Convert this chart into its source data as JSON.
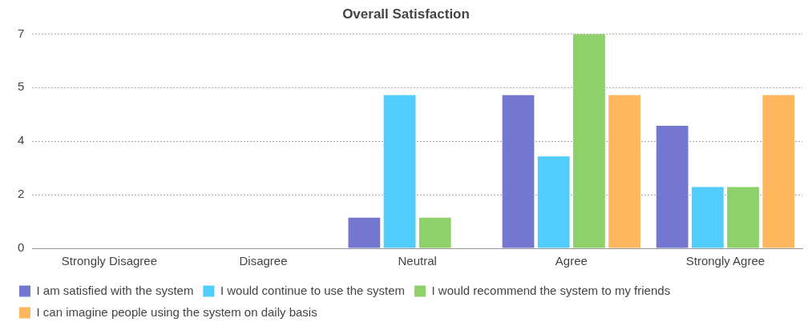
{
  "chart_data": {
    "type": "bar",
    "title": "Overall Satisfaction",
    "categories": [
      "Strongly Disagree",
      "Disagree",
      "Neutral",
      "Agree",
      "Strongly Agree"
    ],
    "series": [
      {
        "name": "I am satisfied with the system",
        "color": "#7377d0",
        "values": [
          0,
          0,
          1,
          5,
          4
        ]
      },
      {
        "name": "I would continue to use the system",
        "color": "#50cdfb",
        "values": [
          0,
          0,
          5,
          3,
          2
        ]
      },
      {
        "name": "I would recommend the system to my friends",
        "color": "#8ed06a",
        "values": [
          0,
          0,
          1,
          7,
          2
        ]
      },
      {
        "name": "I can imagine people using the system on daily basis",
        "color": "#ffb75d",
        "values": [
          0,
          0,
          0,
          5,
          5
        ]
      }
    ],
    "ylim": [
      0,
      7
    ],
    "yticks": [
      {
        "value": 0,
        "label": "0"
      },
      {
        "value": 1.75,
        "label": "2"
      },
      {
        "value": 3.5,
        "label": "4"
      },
      {
        "value": 5.25,
        "label": "5"
      },
      {
        "value": 7,
        "label": "7"
      }
    ],
    "grid": "y",
    "legend": "bottom"
  }
}
